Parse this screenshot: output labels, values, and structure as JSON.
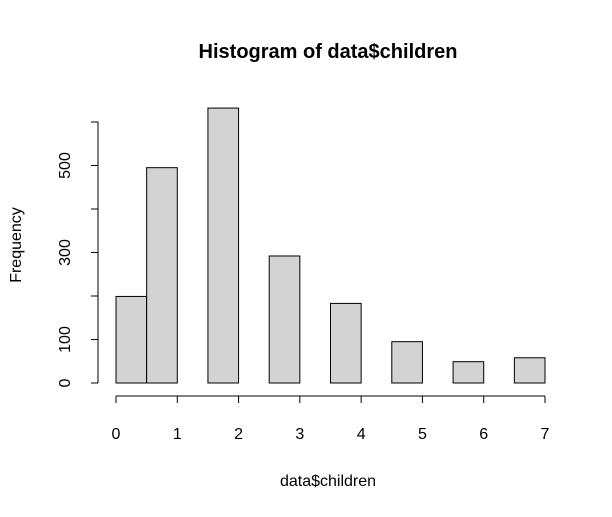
{
  "chart_data": {
    "type": "bar",
    "title": "Histogram of data$children",
    "xlabel": "data$children",
    "ylabel": "Frequency",
    "bins": [
      {
        "start": 0.0,
        "end": 0.5,
        "count": 199
      },
      {
        "start": 0.5,
        "end": 1.0,
        "count": 495
      },
      {
        "start": 1.5,
        "end": 2.0,
        "count": 632
      },
      {
        "start": 2.5,
        "end": 3.0,
        "count": 292
      },
      {
        "start": 3.5,
        "end": 4.0,
        "count": 183
      },
      {
        "start": 4.5,
        "end": 5.0,
        "count": 95
      },
      {
        "start": 5.5,
        "end": 6.0,
        "count": 49
      },
      {
        "start": 6.5,
        "end": 7.0,
        "count": 58
      }
    ],
    "xlim": [
      0,
      7
    ],
    "ylim": [
      0,
      600
    ],
    "x_ticks": [
      0,
      1,
      2,
      3,
      4,
      5,
      6,
      7
    ],
    "y_ticks": [
      0,
      100,
      200,
      300,
      400,
      500,
      600
    ],
    "y_tick_labels": [
      "0",
      "100",
      "",
      "300",
      "",
      "500",
      ""
    ],
    "bar_color": "#d3d3d3",
    "grid": false
  }
}
